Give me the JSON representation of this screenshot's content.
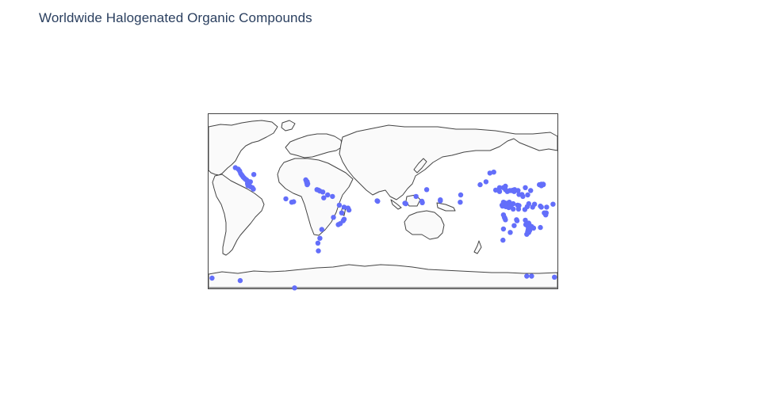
{
  "title": "Worldwide Halogenated Organic Compounds",
  "colors": {
    "marker": "#636efa",
    "land": "#fafafa",
    "coastline": "#444444",
    "frame": "#444444",
    "title": "#2a3f5f"
  },
  "chart_data": {
    "type": "scatter",
    "projection": "equirectangular",
    "lon_range": [
      -180,
      180
    ],
    "lat_range": [
      -90,
      90
    ],
    "series": [
      {
        "points": [
          [
            -79.5,
            22.0
          ],
          [
            -79.0,
            21.0
          ],
          [
            -78.0,
            20.0
          ],
          [
            -78.5,
            19.0
          ],
          [
            -77.5,
            18.0
          ],
          [
            -78.0,
            17.0
          ],
          [
            -68.0,
            12.0
          ],
          [
            -66.5,
            11.5
          ],
          [
            -65.0,
            10.5
          ],
          [
            -62.0,
            9.5
          ],
          [
            -57.0,
            6.5
          ],
          [
            -52.0,
            5.0
          ],
          [
            -61.0,
            3.5
          ],
          [
            -45.0,
            -4.0
          ],
          [
            -40.0,
            -6.0
          ],
          [
            -36.0,
            -7.0
          ],
          [
            -35.0,
            -9.0
          ],
          [
            -42.5,
            -12.0
          ],
          [
            -51.0,
            -16.5
          ],
          [
            -40.0,
            -18.5
          ],
          [
            -41.0,
            -20.0
          ],
          [
            -44.0,
            -23.0
          ],
          [
            -46.0,
            -24.0
          ],
          [
            -63.0,
            -29.0
          ],
          [
            -65.0,
            -38.0
          ],
          [
            -67.0,
            -43.0
          ],
          [
            -66.5,
            -51.0
          ],
          [
            -91.0,
            -89.0
          ],
          [
            -6.0,
            0.5
          ],
          [
            -5.5,
            0.0
          ],
          [
            22.5,
            -2.0
          ],
          [
            23.5,
            -2.5
          ],
          [
            34.0,
            5.0
          ],
          [
            40.0,
            0.0
          ],
          [
            40.5,
            -1.5
          ],
          [
            45.0,
            12.0
          ],
          [
            59.0,
            1.5
          ],
          [
            59.0,
            0.5
          ],
          [
            79.5,
            -1.0
          ],
          [
            80.0,
            6.5
          ],
          [
            100.0,
            17.0
          ],
          [
            106.0,
            20.0
          ],
          [
            110.0,
            29.0
          ],
          [
            114.0,
            30.0
          ],
          [
            116.0,
            11.5
          ],
          [
            120.0,
            10.0
          ],
          [
            120.0,
            14.0
          ],
          [
            124.0,
            14.0
          ],
          [
            126.0,
            12.0
          ],
          [
            126.0,
            15.5
          ],
          [
            128.0,
            10.0
          ],
          [
            130.5,
            11.0
          ],
          [
            132.5,
            11.0
          ],
          [
            134.0,
            11.5
          ],
          [
            135.0,
            10.0
          ],
          [
            135.5,
            12.0
          ],
          [
            139.0,
            11.0
          ],
          [
            140.0,
            7.0
          ],
          [
            143.0,
            7.0
          ],
          [
            144.0,
            5.0
          ],
          [
            149.0,
            6.5
          ],
          [
            146.5,
            14.0
          ],
          [
            152.0,
            11.0
          ],
          [
            161.0,
            17.0
          ],
          [
            163.0,
            16.0
          ],
          [
            163.0,
            17.5
          ],
          [
            165.0,
            17.5
          ],
          [
            165.0,
            17.0
          ],
          [
            124.0,
            -1.0
          ],
          [
            125.0,
            -1.5
          ],
          [
            126.0,
            -2.0
          ],
          [
            127.0,
            -3.0
          ],
          [
            128.0,
            -2.0
          ],
          [
            129.0,
            -3.5
          ],
          [
            130.0,
            -1.0
          ],
          [
            131.0,
            -3.0
          ],
          [
            132.0,
            -4.0
          ],
          [
            134.0,
            -2.5
          ],
          [
            122.5,
            -4.0
          ],
          [
            123.0,
            -5.0
          ],
          [
            127.5,
            -5.0
          ],
          [
            126.5,
            -5.5
          ],
          [
            129.5,
            -6.5
          ],
          [
            134.0,
            -8.0
          ],
          [
            138.5,
            -4.0
          ],
          [
            140.0,
            -4.5
          ],
          [
            139.5,
            -8.0
          ],
          [
            146.0,
            -8.5
          ],
          [
            148.5,
            -5.5
          ],
          [
            150.0,
            -2.5
          ],
          [
            154.0,
            -6.0
          ],
          [
            156.0,
            -3.0
          ],
          [
            162.0,
            -5.0
          ],
          [
            163.0,
            -6.0
          ],
          [
            168.5,
            -6.0
          ],
          [
            175.0,
            -3.0
          ],
          [
            166.0,
            -12.0
          ],
          [
            168.0,
            -12.0
          ],
          [
            167.5,
            -14.0
          ],
          [
            124.0,
            -14.0
          ],
          [
            125.0,
            -16.5
          ],
          [
            125.5,
            -17.5
          ],
          [
            126.0,
            -19.0
          ],
          [
            137.5,
            -19.0
          ],
          [
            138.0,
            -20.0
          ],
          [
            135.0,
            -25.0
          ],
          [
            124.0,
            -28.5
          ],
          [
            146.5,
            -19.5
          ],
          [
            150.0,
            -22.5
          ],
          [
            147.0,
            -24.0
          ],
          [
            149.0,
            -25.5
          ],
          [
            150.0,
            -26.5
          ],
          [
            151.0,
            -27.0
          ],
          [
            152.0,
            -25.5
          ],
          [
            152.5,
            -26.0
          ],
          [
            153.0,
            -26.0
          ],
          [
            152.0,
            -27.5
          ],
          [
            155.0,
            -27.5
          ],
          [
            149.5,
            -29.0
          ],
          [
            150.0,
            -30.0
          ],
          [
            151.0,
            -30.0
          ],
          [
            149.0,
            -31.0
          ],
          [
            150.0,
            -32.0
          ],
          [
            162.0,
            -27.0
          ],
          [
            148.0,
            -34.0
          ],
          [
            131.0,
            -32.0
          ],
          [
            123.5,
            -40.0
          ],
          [
            148.0,
            -77.0
          ],
          [
            153.0,
            -77.0
          ],
          [
            176.5,
            -78.0
          ],
          [
            184.0,
            -79.0
          ],
          [
            213.0,
            -81.5
          ],
          [
            208.0,
            34.5
          ],
          [
            211.0,
            33.0
          ],
          [
            212.5,
            31.0
          ],
          [
            213.5,
            28.5
          ],
          [
            214.5,
            27.0
          ],
          [
            215.0,
            26.5
          ],
          [
            216.0,
            25.0
          ],
          [
            217.0,
            24.0
          ],
          [
            218.0,
            23.0
          ],
          [
            219.5,
            22.0
          ],
          [
            220.0,
            21.0
          ],
          [
            221.0,
            20.5
          ],
          [
            222.0,
            20.0
          ],
          [
            223.5,
            20.0
          ],
          [
            220.5,
            18.0
          ],
          [
            221.0,
            16.0
          ],
          [
            223.5,
            15.0
          ],
          [
            225.5,
            14.0
          ],
          [
            226.5,
            12.5
          ],
          [
            227.0,
            27.5
          ],
          [
            260.0,
            2.5
          ],
          [
            266.0,
            -1.0
          ],
          [
            268.0,
            -0.5
          ]
        ]
      }
    ]
  }
}
